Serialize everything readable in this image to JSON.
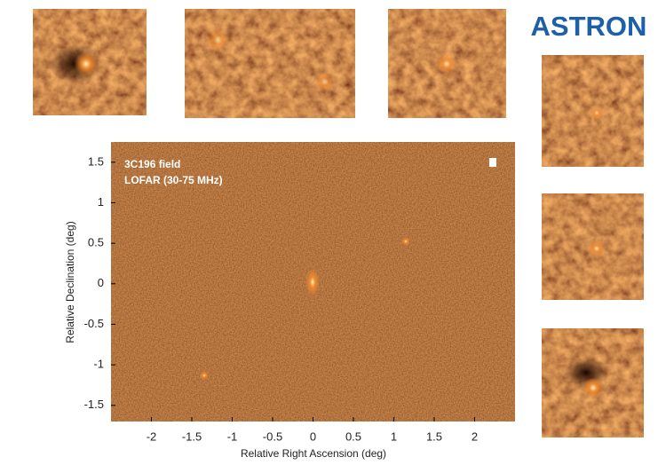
{
  "logo": "ASTRON",
  "main_panel": {
    "annotations": [
      "3C196 field",
      "LOFAR (30-75 MHz)"
    ],
    "x_label": "Relative Right Ascension (deg)",
    "y_label": "Relative Declination (deg)",
    "xlim": [
      -2.5,
      2.5
    ],
    "ylim": [
      -1.7,
      1.75
    ],
    "xticks": [
      -2,
      -1.5,
      -1,
      -0.5,
      0,
      0.5,
      1,
      1.5,
      2
    ],
    "yticks": [
      1.5,
      1,
      0.5,
      0,
      -0.5,
      -1,
      -1.5
    ]
  }
}
